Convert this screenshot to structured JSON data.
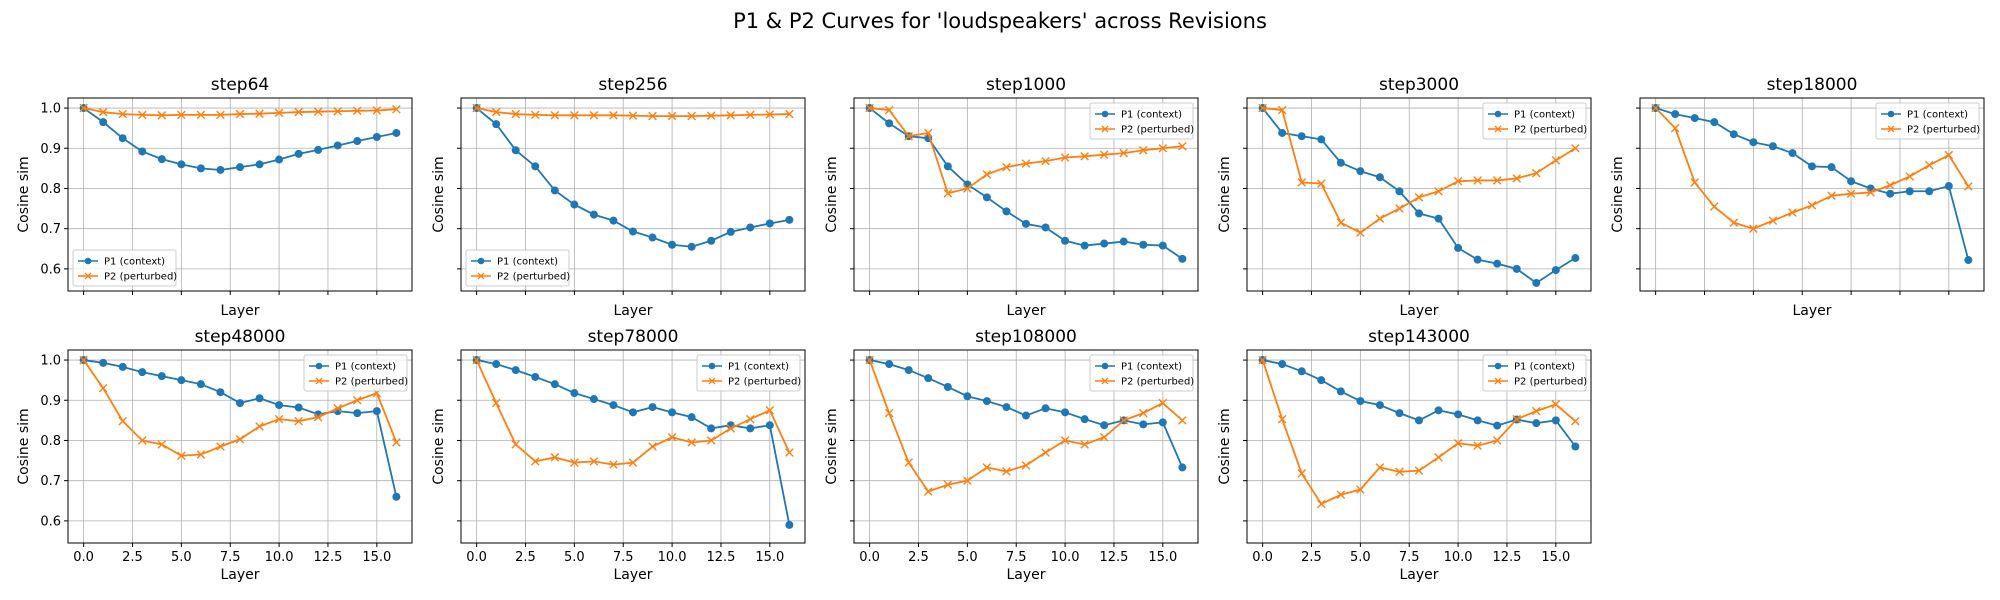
{
  "suptitle": "P1 & P2 Curves for 'loudspeakers' across Revisions",
  "colors": {
    "p1": "#1f77b4",
    "p2": "#ff7f0e",
    "grid": "#b0b0b0"
  },
  "chart_data": {
    "type": "line",
    "xlabel": "Layer",
    "ylabel": "Cosine sim",
    "xlim": [
      -0.8,
      16.8
    ],
    "ylim": [
      0.545,
      1.025
    ],
    "xticks": [
      0,
      2.5,
      5,
      7.5,
      10,
      12.5,
      15
    ],
    "xtick_labels": [
      "0.0",
      "2.5",
      "5.0",
      "7.5",
      "10.0",
      "12.5",
      "15.0"
    ],
    "yticks": [
      0.6,
      0.7,
      0.8,
      0.9,
      1.0
    ],
    "ytick_labels": [
      "0.6",
      "0.7",
      "0.8",
      "0.9",
      "1.0"
    ],
    "grid": true,
    "series_names": [
      "P1 (context)",
      "P2 (perturbed)"
    ],
    "layers": [
      0,
      1,
      2,
      3,
      4,
      5,
      6,
      7,
      8,
      9,
      10,
      11,
      12,
      13,
      14,
      15,
      16
    ],
    "panels": [
      {
        "title": "step64",
        "legend": "lower-left",
        "p1": [
          1.0,
          0.965,
          0.925,
          0.892,
          0.873,
          0.86,
          0.85,
          0.846,
          0.853,
          0.86,
          0.872,
          0.886,
          0.896,
          0.907,
          0.918,
          0.928,
          0.938
        ],
        "p2": [
          1.0,
          0.99,
          0.985,
          0.983,
          0.982,
          0.983,
          0.983,
          0.983,
          0.985,
          0.986,
          0.988,
          0.99,
          0.991,
          0.992,
          0.993,
          0.994,
          0.997
        ]
      },
      {
        "title": "step256",
        "legend": "lower-left",
        "p1": [
          1.0,
          0.96,
          0.895,
          0.855,
          0.795,
          0.76,
          0.735,
          0.72,
          0.693,
          0.678,
          0.66,
          0.655,
          0.67,
          0.692,
          0.703,
          0.713,
          0.722
        ],
        "p2": [
          1.0,
          0.99,
          0.985,
          0.983,
          0.982,
          0.982,
          0.982,
          0.982,
          0.981,
          0.98,
          0.98,
          0.98,
          0.981,
          0.982,
          0.983,
          0.984,
          0.985
        ]
      },
      {
        "title": "step1000",
        "legend": "upper-right",
        "p1": [
          1.0,
          0.962,
          0.93,
          0.925,
          0.855,
          0.81,
          0.778,
          0.743,
          0.712,
          0.703,
          0.67,
          0.658,
          0.663,
          0.668,
          0.66,
          0.658,
          0.625
        ],
        "p2": [
          1.0,
          0.995,
          0.93,
          0.938,
          0.788,
          0.8,
          0.835,
          0.853,
          0.862,
          0.868,
          0.877,
          0.88,
          0.884,
          0.888,
          0.895,
          0.9,
          0.905
        ]
      },
      {
        "title": "step3000",
        "legend": "upper-right",
        "p1": [
          1.0,
          0.938,
          0.93,
          0.922,
          0.864,
          0.843,
          0.828,
          0.793,
          0.738,
          0.725,
          0.652,
          0.623,
          0.613,
          0.6,
          0.565,
          0.597,
          0.627
        ],
        "p2": [
          1.0,
          0.995,
          0.815,
          0.812,
          0.715,
          0.69,
          0.725,
          0.75,
          0.778,
          0.793,
          0.818,
          0.82,
          0.82,
          0.825,
          0.838,
          0.87,
          0.9
        ]
      },
      {
        "title": "step18000",
        "legend": "upper-right",
        "p1": [
          1.0,
          0.985,
          0.975,
          0.965,
          0.935,
          0.915,
          0.905,
          0.888,
          0.855,
          0.853,
          0.818,
          0.8,
          0.787,
          0.793,
          0.793,
          0.806,
          0.622
        ],
        "p2": [
          1.0,
          0.95,
          0.815,
          0.755,
          0.715,
          0.7,
          0.72,
          0.74,
          0.758,
          0.782,
          0.787,
          0.79,
          0.808,
          0.83,
          0.858,
          0.883,
          0.805
        ]
      },
      {
        "title": "step48000",
        "legend": "upper-right",
        "p1": [
          1.0,
          0.993,
          0.983,
          0.97,
          0.96,
          0.95,
          0.94,
          0.92,
          0.893,
          0.905,
          0.888,
          0.882,
          0.865,
          0.873,
          0.868,
          0.873,
          0.66
        ],
        "p2": [
          1.0,
          0.93,
          0.848,
          0.8,
          0.79,
          0.762,
          0.765,
          0.785,
          0.803,
          0.835,
          0.853,
          0.848,
          0.858,
          0.88,
          0.9,
          0.918,
          0.795
        ]
      },
      {
        "title": "step78000",
        "legend": "upper-right",
        "p1": [
          1.0,
          0.99,
          0.975,
          0.958,
          0.94,
          0.918,
          0.903,
          0.888,
          0.87,
          0.883,
          0.87,
          0.858,
          0.83,
          0.838,
          0.83,
          0.838,
          0.59
        ],
        "p2": [
          1.0,
          0.893,
          0.79,
          0.748,
          0.758,
          0.745,
          0.748,
          0.74,
          0.745,
          0.785,
          0.808,
          0.795,
          0.8,
          0.83,
          0.853,
          0.875,
          0.77
        ]
      },
      {
        "title": "step108000",
        "legend": "upper-right",
        "p1": [
          1.0,
          0.99,
          0.975,
          0.955,
          0.933,
          0.91,
          0.898,
          0.883,
          0.862,
          0.88,
          0.87,
          0.853,
          0.838,
          0.85,
          0.84,
          0.845,
          0.733
        ],
        "p2": [
          1.0,
          0.868,
          0.745,
          0.673,
          0.69,
          0.7,
          0.733,
          0.723,
          0.738,
          0.77,
          0.8,
          0.79,
          0.808,
          0.85,
          0.868,
          0.893,
          0.85
        ]
      },
      {
        "title": "step143000",
        "legend": "upper-right",
        "p1": [
          1.0,
          0.99,
          0.972,
          0.95,
          0.922,
          0.898,
          0.888,
          0.868,
          0.85,
          0.875,
          0.865,
          0.85,
          0.837,
          0.852,
          0.843,
          0.85,
          0.785
        ],
        "p2": [
          1.0,
          0.853,
          0.718,
          0.642,
          0.665,
          0.678,
          0.733,
          0.722,
          0.725,
          0.758,
          0.793,
          0.787,
          0.8,
          0.853,
          0.873,
          0.89,
          0.848
        ]
      }
    ]
  }
}
